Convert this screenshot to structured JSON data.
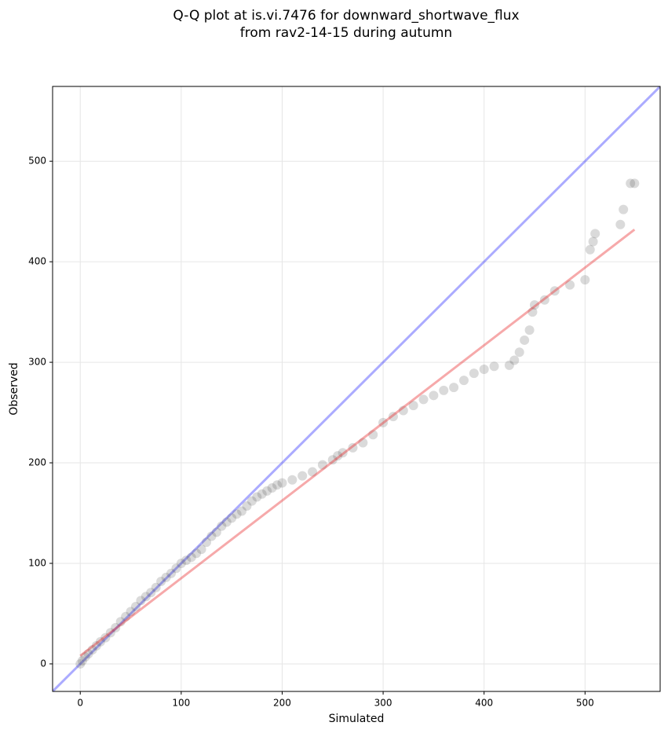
{
  "chart_data": {
    "type": "scatter",
    "title": "Q-Q plot at is.vi.7476 for downward_shortwave_flux",
    "subtitle": "from rav2-14-15 during autumn",
    "x_label": "Simulated",
    "y_label": "Observed",
    "xlim": [
      -27.4,
      574.4
    ],
    "ylim": [
      -27.4,
      574.4
    ],
    "xticks": [
      0,
      100,
      200,
      300,
      400,
      500
    ],
    "yticks": [
      0,
      100,
      200,
      300,
      400,
      500
    ],
    "grid": true,
    "color": "#444444",
    "alpha": 0.2,
    "identity_line": true,
    "identity_color": "#0000ff",
    "fit_line": {
      "x": [
        0,
        549
      ],
      "y": [
        8,
        432
      ],
      "color": "#e8282a"
    },
    "x": [
      0,
      2,
      5,
      8,
      12,
      16,
      20,
      25,
      30,
      35,
      40,
      45,
      50,
      55,
      60,
      65,
      70,
      75,
      80,
      85,
      90,
      95,
      100,
      105,
      110,
      115,
      120,
      125,
      130,
      135,
      140,
      145,
      150,
      155,
      160,
      165,
      170,
      175,
      180,
      185,
      190,
      195,
      200,
      210,
      220,
      230,
      240,
      250,
      255,
      260,
      270,
      280,
      290,
      300,
      310,
      320,
      330,
      340,
      350,
      360,
      370,
      380,
      390,
      400,
      410,
      425,
      430,
      435,
      440,
      445,
      448,
      450,
      460,
      470,
      485,
      500,
      505,
      508,
      510,
      535,
      538,
      545,
      549
    ],
    "values": [
      0,
      3,
      7,
      10,
      14,
      18,
      22,
      26,
      31,
      36,
      42,
      47,
      52,
      57,
      63,
      67,
      71,
      76,
      82,
      86,
      90,
      95,
      100,
      103,
      106,
      110,
      114,
      121,
      127,
      131,
      137,
      141,
      145,
      149,
      152,
      157,
      162,
      166,
      169,
      172,
      175,
      178,
      180,
      183,
      187,
      191,
      198,
      203,
      207,
      210,
      215,
      220,
      228,
      240,
      246,
      252,
      257,
      263,
      267,
      272,
      275,
      282,
      289,
      293,
      296,
      297,
      302,
      310,
      322,
      332,
      350,
      357,
      362,
      371,
      377,
      382,
      412,
      420,
      428,
      437,
      452,
      478,
      478
    ]
  }
}
